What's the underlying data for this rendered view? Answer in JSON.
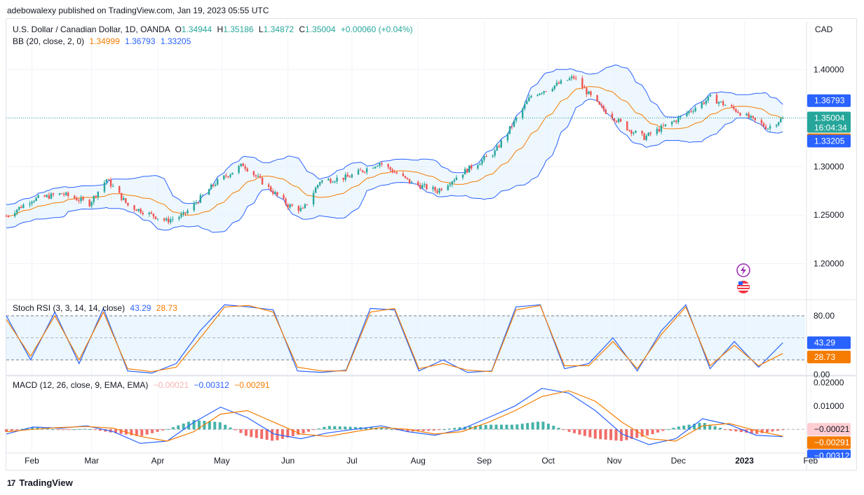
{
  "header": {
    "published": "adebowalexy published on TradingView.com, Jan 19, 2023 05:55 UTC"
  },
  "footer": {
    "brand": "TradingView",
    "logo": "17"
  },
  "colors": {
    "up": "#26a69a",
    "down": "#ef5350",
    "bb_upper": "#2962ff",
    "bb_basis": "#f57c00",
    "bb_fill": "#e3f2fd",
    "stoch_k": "#2962ff",
    "stoch_d": "#f57c00",
    "macd_line": "#2962ff",
    "signal_line": "#f57c00"
  },
  "main": {
    "symbol": "U.S. Dollar / Canadian Dollar, 1D, OANDA",
    "o_label": "O",
    "o": "1.34944",
    "h_label": "H",
    "h": "1.35186",
    "l_label": "L",
    "l": "1.34872",
    "c_label": "C",
    "c": "1.35004",
    "change": "+0.00060 (+0.04%)",
    "bb_label": "BB (20, close, 2, 0)",
    "bb_basis": "1.34999",
    "bb_upper": "1.36793",
    "bb_lower": "1.33205",
    "currency": "CAD",
    "price_badge": "1.35004",
    "countdown": "16:04:34",
    "icons": [
      "lightning-icon",
      "us-flag-icon"
    ]
  },
  "stoch": {
    "label": "Stoch RSI (3, 3, 14, 14, close)",
    "k": "43.29",
    "d": "28.73"
  },
  "macd": {
    "label": "MACD (12, 26, close, 9, EMA, EMA)",
    "hist": "−0.00021",
    "macd": "−0.00312",
    "signal": "−0.00291"
  },
  "chart_data": [
    {
      "type": "candlestick",
      "title": "U.S. Dollar / Canadian Dollar, 1D, OANDA",
      "ylabel": "CAD",
      "yticks": [
        1.2,
        1.25,
        1.3,
        1.35,
        1.4
      ],
      "ytick_labels": [
        "1.20000",
        "1.25000",
        "1.30000",
        "1.35000",
        "1.40000"
      ],
      "ylim": [
        1.165,
        1.45
      ],
      "xticks": [
        "Feb",
        "Mar",
        "Apr",
        "May",
        "Jun",
        "Jul",
        "Aug",
        "Sep",
        "Oct",
        "Nov",
        "Dec",
        "2023",
        "Feb"
      ],
      "grid": true,
      "last_ohlc": {
        "open": 1.34944,
        "high": 1.35186,
        "low": 1.34872,
        "close": 1.35004
      },
      "bollinger_bands": {
        "length": 20,
        "mult": 2,
        "basis": 1.34999,
        "upper": 1.36793,
        "lower": 1.33205
      },
      "close_series": [
        {
          "date": "2022-01-20",
          "close": 1.249
        },
        {
          "date": "2022-02-01",
          "close": 1.266
        },
        {
          "date": "2022-02-15",
          "close": 1.272
        },
        {
          "date": "2022-02-28",
          "close": 1.262
        },
        {
          "date": "2022-03-08",
          "close": 1.287
        },
        {
          "date": "2022-03-18",
          "close": 1.26
        },
        {
          "date": "2022-04-05",
          "close": 1.244
        },
        {
          "date": "2022-04-13",
          "close": 1.25
        },
        {
          "date": "2022-04-28",
          "close": 1.283
        },
        {
          "date": "2022-05-11",
          "close": 1.302
        },
        {
          "date": "2022-05-20",
          "close": 1.284
        },
        {
          "date": "2022-06-01",
          "close": 1.26
        },
        {
          "date": "2022-06-08",
          "close": 1.255
        },
        {
          "date": "2022-06-16",
          "close": 1.285
        },
        {
          "date": "2022-06-29",
          "close": 1.289
        },
        {
          "date": "2022-07-14",
          "close": 1.304
        },
        {
          "date": "2022-07-29",
          "close": 1.283
        },
        {
          "date": "2022-08-10",
          "close": 1.275
        },
        {
          "date": "2022-08-22",
          "close": 1.294
        },
        {
          "date": "2022-09-06",
          "close": 1.315
        },
        {
          "date": "2022-09-23",
          "close": 1.373
        },
        {
          "date": "2022-10-13",
          "close": 1.392
        },
        {
          "date": "2022-10-25",
          "close": 1.362
        },
        {
          "date": "2022-11-08",
          "close": 1.338
        },
        {
          "date": "2022-11-15",
          "close": 1.33
        },
        {
          "date": "2022-11-30",
          "close": 1.348
        },
        {
          "date": "2022-12-16",
          "close": 1.371
        },
        {
          "date": "2022-12-28",
          "close": 1.358
        },
        {
          "date": "2023-01-05",
          "close": 1.348
        },
        {
          "date": "2023-01-12",
          "close": 1.34
        },
        {
          "date": "2023-01-19",
          "close": 1.35004
        }
      ]
    },
    {
      "type": "line",
      "title": "Stoch RSI (3, 3, 14, 14, close)",
      "ylim": [
        0,
        100
      ],
      "yticks": [
        0,
        80
      ],
      "ytick_labels": [
        "0.00",
        "80.00"
      ],
      "bands": [
        20,
        80
      ],
      "series": [
        {
          "name": "K",
          "values": [
            80,
            20,
            85,
            15,
            90,
            5,
            2,
            15,
            60,
            95,
            92,
            88,
            5,
            3,
            6,
            90,
            88,
            5,
            20,
            3,
            5,
            92,
            95,
            8,
            15,
            50,
            5,
            60,
            95,
            8,
            45,
            10,
            43.29
          ]
        },
        {
          "name": "D",
          "values": [
            75,
            25,
            80,
            20,
            85,
            8,
            4,
            10,
            50,
            92,
            94,
            85,
            10,
            5,
            5,
            85,
            90,
            8,
            15,
            6,
            4,
            88,
            94,
            12,
            12,
            45,
            8,
            55,
            92,
            12,
            40,
            12,
            28.73
          ]
        }
      ]
    },
    {
      "type": "bar",
      "title": "MACD (12, 26, close, 9, EMA, EMA)",
      "ylim": [
        -0.0095,
        0.0225
      ],
      "yticks": [
        0.0,
        0.01,
        0.02
      ],
      "ytick_labels": [
        "",
        "0.01000",
        "0.02000"
      ],
      "last": {
        "histogram": -0.00021,
        "macd": -0.00312,
        "signal": -0.00291
      },
      "series": [
        {
          "name": "MACD",
          "values": [
            -0.002,
            0.001,
            0.0005,
            0.0015,
            -0.001,
            -0.006,
            -0.005,
            0.003,
            0.0095,
            0.005,
            -0.002,
            -0.004,
            -0.0015,
            0.0,
            0.0015,
            -0.001,
            -0.0025,
            0.0,
            0.005,
            0.01,
            0.0175,
            0.0155,
            0.008,
            -0.002,
            -0.0065,
            -0.004,
            0.0045,
            0.002,
            -0.0025,
            -0.00312
          ]
        },
        {
          "name": "Signal",
          "values": [
            -0.001,
            0.0,
            0.0008,
            0.0012,
            0.0005,
            -0.003,
            -0.005,
            -0.001,
            0.0065,
            0.008,
            0.003,
            -0.002,
            -0.003,
            -0.001,
            0.0008,
            0.0,
            -0.002,
            -0.001,
            0.003,
            0.008,
            0.014,
            0.0165,
            0.012,
            0.003,
            -0.004,
            -0.005,
            0.0015,
            0.0025,
            -0.0005,
            -0.00291
          ]
        }
      ]
    }
  ]
}
